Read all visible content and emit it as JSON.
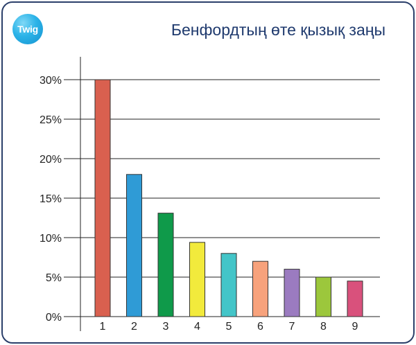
{
  "header": {
    "logo_text": "Twig",
    "title": "Бенфордтың өте қызық заңы"
  },
  "chart_data": {
    "type": "bar",
    "title": "Бенфордтың өте қызық заңы",
    "xlabel": "",
    "ylabel": "",
    "categories": [
      "1",
      "2",
      "3",
      "4",
      "5",
      "6",
      "7",
      "8",
      "9"
    ],
    "values": [
      30.0,
      18.0,
      13.1,
      9.4,
      8.0,
      7.0,
      6.0,
      5.0,
      4.5
    ],
    "ylim": [
      0,
      30
    ],
    "yticks": [
      0,
      5,
      10,
      15,
      20,
      25,
      30
    ],
    "ytick_labels": [
      "0%",
      "5%",
      "10%",
      "15%",
      "20%",
      "25%",
      "30%"
    ],
    "grid": true,
    "bar_colors": [
      "#d9604f",
      "#2f9bd6",
      "#0f9a4a",
      "#f2ea3c",
      "#43c5c8",
      "#f7a27c",
      "#9b7bc0",
      "#9cc73c",
      "#d9517c"
    ]
  }
}
